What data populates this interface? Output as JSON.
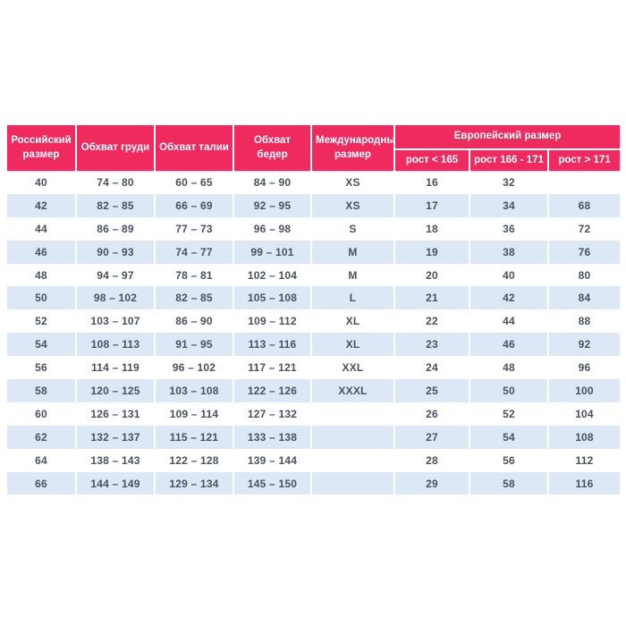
{
  "colors": {
    "header_bg": "#ee2a5f",
    "header_text": "#ffffff",
    "stripe_bg": "#dce8f5",
    "row_bg": "#ffffff",
    "cell_text": "#49525c",
    "divider": "#ffffff",
    "page_bg": "#ffffff"
  },
  "chart_data": {
    "type": "table",
    "title": "",
    "headers": {
      "russian_size": "Российский размер",
      "chest": "Обхват груди",
      "waist": "Обхват талии",
      "hips": "Обхват бедер",
      "international_size": "Международный размер",
      "european_group": "Европейский размер",
      "height_lt": "рост < 165",
      "height_mid": "рост 166 - 171",
      "height_gt": "рост > 171"
    },
    "columns": [
      "Российский размер",
      "Обхват груди",
      "Обхват талии",
      "Обхват бедер",
      "Международный размер",
      "Европейский размер / рост < 165",
      "Европейский размер / рост 166 - 171",
      "Европейский размер / рост > 171"
    ],
    "rows": [
      [
        "40",
        "74 – 80",
        "60 – 65",
        "84 – 90",
        "XS",
        "16",
        "32",
        ""
      ],
      [
        "42",
        "82 – 85",
        "66 – 69",
        "92 – 95",
        "XS",
        "17",
        "34",
        "68"
      ],
      [
        "44",
        "86 – 89",
        "77 – 73",
        "96 – 98",
        "S",
        "18",
        "36",
        "72"
      ],
      [
        "46",
        "90 – 93",
        "74 – 77",
        "99 – 101",
        "M",
        "19",
        "38",
        "76"
      ],
      [
        "48",
        "94 – 97",
        "78 – 81",
        "102 – 104",
        "M",
        "20",
        "40",
        "80"
      ],
      [
        "50",
        "98 – 102",
        "82 – 85",
        "105 – 108",
        "L",
        "21",
        "42",
        "84"
      ],
      [
        "52",
        "103 – 107",
        "86 – 90",
        "109 – 112",
        "XL",
        "22",
        "44",
        "88"
      ],
      [
        "54",
        "108 – 113",
        "91 – 95",
        "113 – 116",
        "XL",
        "23",
        "46",
        "92"
      ],
      [
        "56",
        "114 – 119",
        "96 – 102",
        "117 – 121",
        "XXL",
        "24",
        "48",
        "96"
      ],
      [
        "58",
        "120 – 125",
        "103 – 108",
        "122 – 126",
        "XXXL",
        "25",
        "50",
        "100"
      ],
      [
        "60",
        "126 – 131",
        "109 – 114",
        "127 – 132",
        "",
        "26",
        "52",
        "104"
      ],
      [
        "62",
        "132 – 137",
        "115 – 121",
        "133 – 138",
        "",
        "27",
        "54",
        "108"
      ],
      [
        "64",
        "138 – 143",
        "122 – 128",
        "139 – 144",
        "",
        "28",
        "56",
        "112"
      ],
      [
        "66",
        "144 – 149",
        "129 – 134",
        "145 – 150",
        "",
        "29",
        "58",
        "116"
      ]
    ]
  }
}
